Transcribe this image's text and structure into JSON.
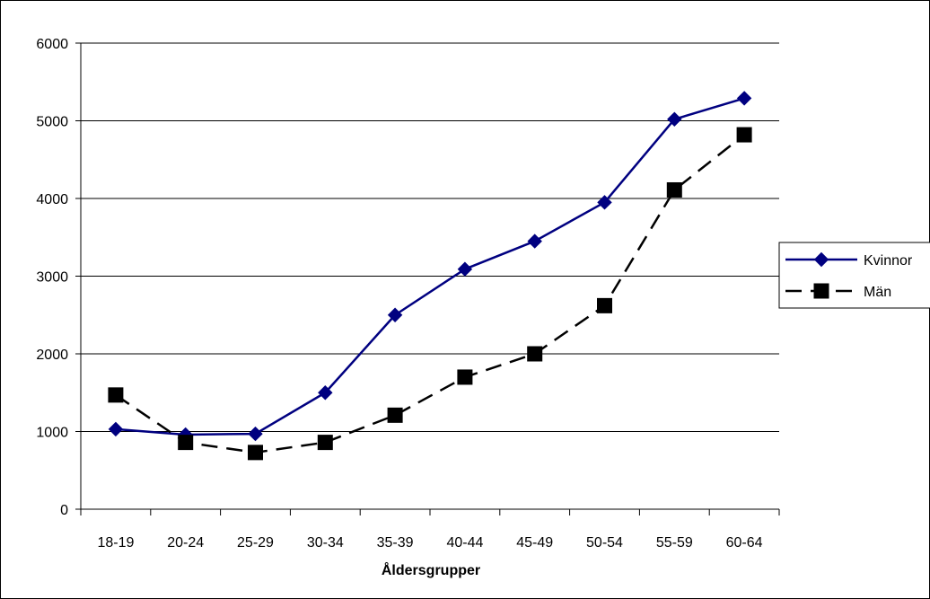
{
  "chart_data": {
    "type": "line",
    "xlabel": "Åldersgrupper",
    "ylabel": "",
    "categories": [
      "18-19",
      "20-24",
      "25-29",
      "30-34",
      "35-39",
      "40-44",
      "45-49",
      "50-54",
      "55-59",
      "60-64"
    ],
    "ylim": [
      0,
      6000
    ],
    "yticks": [
      "0",
      "1000",
      "2000",
      "3000",
      "4000",
      "5000",
      "6000"
    ],
    "grid": true,
    "legend_position": "right",
    "series": [
      {
        "name": "Kvinnor",
        "values": [
          1030,
          960,
          970,
          1500,
          2500,
          3090,
          3450,
          3950,
          5020,
          5290
        ],
        "color": "#000080",
        "marker": "diamond",
        "line_style": "solid"
      },
      {
        "name": "Män",
        "values": [
          1470,
          860,
          730,
          860,
          1210,
          1700,
          2000,
          2620,
          4110,
          4820
        ],
        "color": "#000000",
        "marker": "square",
        "line_style": "dashed"
      }
    ]
  }
}
